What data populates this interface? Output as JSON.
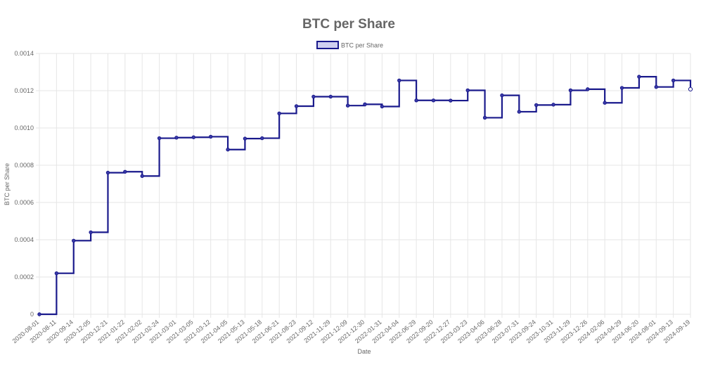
{
  "colors": {
    "line": "#1a1a8c",
    "point_fill": "#3a3aa8",
    "legend_fill": "#d0d0f0",
    "grid": "#e6e6e6",
    "text": "#666666"
  },
  "chart_data": {
    "type": "line",
    "stepped": true,
    "title": "BTC per Share",
    "xlabel": "Date",
    "ylabel": "BTC per Share",
    "legend": {
      "position": "top",
      "labels": [
        "BTC per Share"
      ]
    },
    "grid": true,
    "ylim": [
      0,
      0.0014
    ],
    "yticks": [
      "0.0014",
      "0.0012",
      "0.0010",
      "0.0008",
      "0.0006",
      "0.0004",
      "0.0002",
      "0"
    ],
    "categories": [
      "2020-08-01",
      "2020-08-11",
      "2020-09-14",
      "2020-12-05",
      "2020-12-21",
      "2021-01-22",
      "2021-02-02",
      "2021-02-24",
      "2021-03-01",
      "2021-03-05",
      "2021-03-12",
      "2021-04-05",
      "2021-05-13",
      "2021-05-18",
      "2021-06-21",
      "2021-08-23",
      "2021-09-12",
      "2021-11-29",
      "2021-12-09",
      "2021-12-30",
      "2022-01-31",
      "2022-04-04",
      "2022-06-29",
      "2022-09-20",
      "2022-12-27",
      "2023-03-23",
      "2023-04-06",
      "2023-06-28",
      "2023-07-31",
      "2023-09-24",
      "2023-10-31",
      "2023-11-29",
      "2023-12-26",
      "2024-02-06",
      "2024-04-29",
      "2024-06-20",
      "2024-08-01",
      "2024-09-13",
      "2024-09-19"
    ],
    "series": [
      {
        "name": "BTC per Share",
        "values": [
          0,
          0.00022,
          0.000395,
          0.00044,
          0.00076,
          0.000765,
          0.000742,
          0.000945,
          0.000948,
          0.00095,
          0.000953,
          0.000884,
          0.000943,
          0.000945,
          0.001078,
          0.001117,
          0.001168,
          0.001168,
          0.00112,
          0.001127,
          0.001115,
          0.001255,
          0.001148,
          0.001148,
          0.001147,
          0.001202,
          0.001055,
          0.001175,
          0.001087,
          0.001123,
          0.001125,
          0.001202,
          0.001208,
          0.001135,
          0.001215,
          0.001275,
          0.00122,
          0.001255,
          0.001208
        ]
      }
    ]
  }
}
